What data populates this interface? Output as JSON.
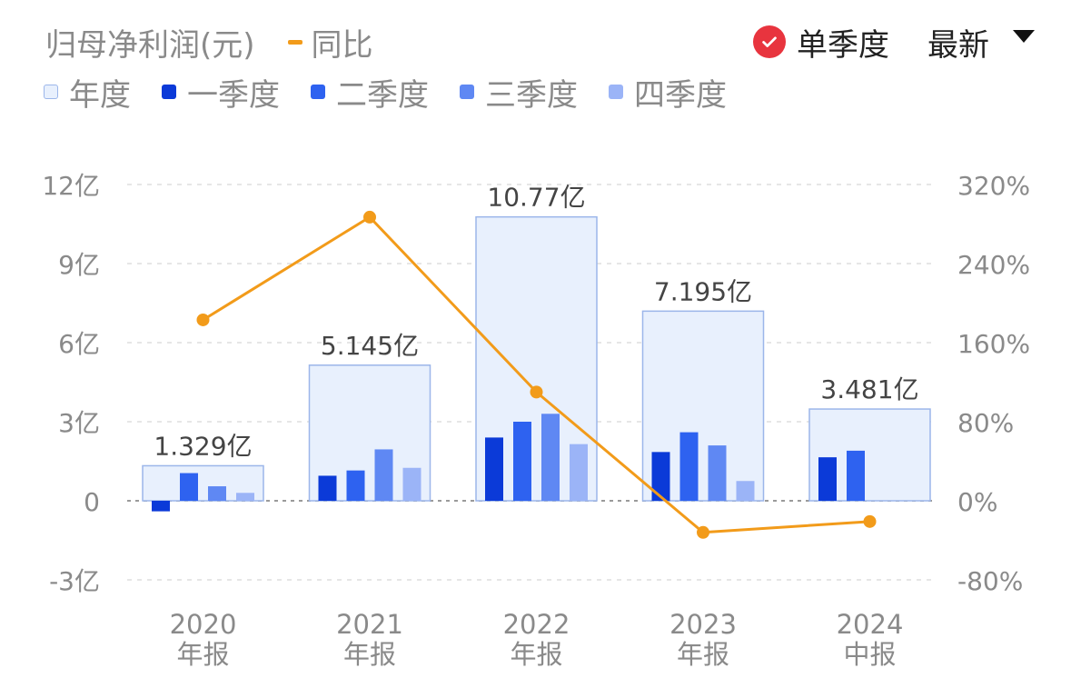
{
  "header": {
    "metric_label": "归母净利润(元)",
    "yoy_label": "同比",
    "single_quarter_label": "单季度",
    "period_label": "最新"
  },
  "legend": [
    {
      "label": "年度",
      "color": "#e8f0fd",
      "border": "#9cb6ea"
    },
    {
      "label": "一季度",
      "color": "#0b3ad8"
    },
    {
      "label": "二季度",
      "color": "#2e62f0"
    },
    {
      "label": "三季度",
      "color": "#5f88f3"
    },
    {
      "label": "四季度",
      "color": "#9bb4f7"
    }
  ],
  "colors": {
    "annual_fill": "#e8f0fd",
    "annual_border": "#9cb6ea",
    "q1": "#0b3ad8",
    "q2": "#2e62f0",
    "q3": "#5f88f3",
    "q4": "#9bb4f7",
    "yoy_line": "#f29b1a",
    "axis_text": "#8a8a8a",
    "label_text": "#444444",
    "grid": "#dedede"
  },
  "chart_data": {
    "type": "bar",
    "categories": [
      {
        "year": "2020",
        "period": "年报"
      },
      {
        "year": "2021",
        "period": "年报"
      },
      {
        "year": "2022",
        "period": "年报"
      },
      {
        "year": "2023",
        "period": "年报"
      },
      {
        "year": "2024",
        "period": "中报"
      }
    ],
    "annual_values": [
      1.329,
      5.145,
      10.77,
      7.195,
      3.481
    ],
    "annual_labels": [
      "1.329亿",
      "5.145亿",
      "10.77亿",
      "7.195亿",
      "3.481亿"
    ],
    "quarters": [
      [
        -0.4,
        1.05,
        0.55,
        0.3
      ],
      [
        0.95,
        1.15,
        1.95,
        1.25
      ],
      [
        2.4,
        3.0,
        3.3,
        2.15
      ],
      [
        1.85,
        2.6,
        2.1,
        0.75
      ],
      [
        1.65,
        1.9,
        null,
        null
      ]
    ],
    "yoy_series": {
      "name": "同比",
      "values": [
        183,
        287,
        110,
        -32,
        -21
      ]
    },
    "left_axis": {
      "ticks": [
        -3,
        0,
        3,
        6,
        9,
        12
      ],
      "tick_labels": [
        "-3亿",
        "0",
        "3亿",
        "6亿",
        "9亿",
        "12亿"
      ],
      "ylim": [
        -3,
        12
      ],
      "unit": "亿元"
    },
    "right_axis": {
      "ticks": [
        -80,
        0,
        80,
        160,
        240,
        320
      ],
      "tick_labels": [
        "-80%",
        "0%",
        "80%",
        "160%",
        "240%",
        "320%"
      ],
      "ylim": [
        -80,
        320
      ]
    },
    "grid": true
  }
}
